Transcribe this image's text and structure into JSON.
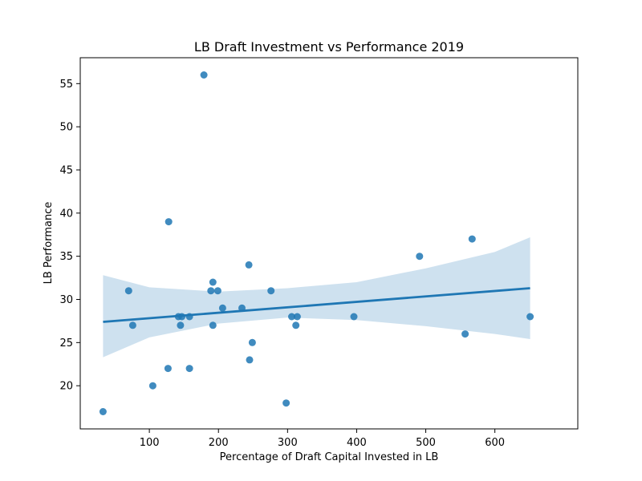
{
  "chart_data": {
    "type": "scatter",
    "title": "LB Draft Investment vs Performance 2019",
    "xlabel": "Percentage of Draft Capital Invested in LB",
    "ylabel": "LB Performance",
    "xlim": [
      0,
      720
    ],
    "ylim": [
      15,
      58
    ],
    "xticks": [
      100,
      200,
      300,
      400,
      500,
      600
    ],
    "yticks": [
      20,
      25,
      30,
      35,
      40,
      45,
      50,
      55
    ],
    "grid": false,
    "point_color": "#1f77b4",
    "line_color": "#1f77b4",
    "band_color": "#c6dcec",
    "points": [
      {
        "x": 33,
        "y": 17
      },
      {
        "x": 70,
        "y": 31
      },
      {
        "x": 76,
        "y": 27
      },
      {
        "x": 105,
        "y": 20
      },
      {
        "x": 127,
        "y": 22
      },
      {
        "x": 128,
        "y": 39
      },
      {
        "x": 142,
        "y": 28
      },
      {
        "x": 145,
        "y": 27
      },
      {
        "x": 147,
        "y": 28
      },
      {
        "x": 158,
        "y": 28
      },
      {
        "x": 158,
        "y": 22
      },
      {
        "x": 179,
        "y": 56
      },
      {
        "x": 189,
        "y": 31
      },
      {
        "x": 192,
        "y": 32
      },
      {
        "x": 192,
        "y": 27
      },
      {
        "x": 199,
        "y": 31
      },
      {
        "x": 206,
        "y": 29
      },
      {
        "x": 234,
        "y": 29
      },
      {
        "x": 244,
        "y": 34
      },
      {
        "x": 245,
        "y": 23
      },
      {
        "x": 249,
        "y": 25
      },
      {
        "x": 276,
        "y": 31
      },
      {
        "x": 298,
        "y": 18
      },
      {
        "x": 306,
        "y": 28
      },
      {
        "x": 312,
        "y": 27
      },
      {
        "x": 314,
        "y": 28
      },
      {
        "x": 396,
        "y": 28
      },
      {
        "x": 491,
        "y": 35
      },
      {
        "x": 557,
        "y": 26
      },
      {
        "x": 567,
        "y": 37
      },
      {
        "x": 651,
        "y": 28
      }
    ],
    "regression": {
      "x": [
        33,
        651
      ],
      "y": [
        27.4,
        31.3
      ]
    },
    "confidence_band": {
      "x": [
        33,
        100,
        200,
        300,
        400,
        500,
        600,
        651
      ],
      "lower": [
        23.3,
        25.6,
        27.2,
        27.9,
        27.6,
        26.9,
        26.0,
        25.4
      ],
      "upper": [
        32.8,
        31.4,
        30.9,
        31.3,
        32.0,
        33.6,
        35.5,
        37.2
      ]
    }
  }
}
